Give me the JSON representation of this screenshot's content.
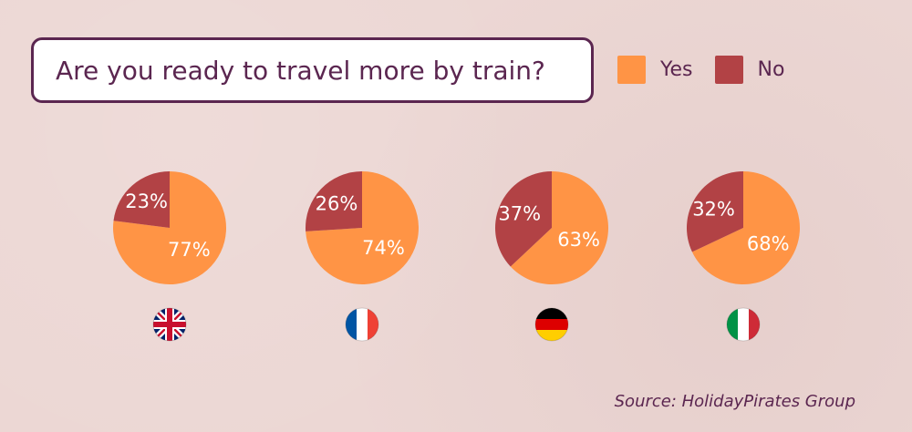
{
  "title": "Are you ready to travel more by train?",
  "legend": {
    "yes_label": "Yes",
    "no_label": "No"
  },
  "colors": {
    "yes": "#ff9445",
    "no": "#b24245",
    "title_text": "#5b2650"
  },
  "source": "Source: HolidayPirates Group",
  "chart_data": {
    "type": "pie",
    "title": "Are you ready to travel more by train?",
    "series_names": [
      "Yes",
      "No"
    ],
    "legend_position": "top-right",
    "pies": [
      {
        "flag": "uk-flag-icon",
        "values": [
          77,
          23
        ],
        "labels": [
          "77%",
          "23%"
        ]
      },
      {
        "flag": "france-flag-icon",
        "values": [
          74,
          26
        ],
        "labels": [
          "74%",
          "26%"
        ]
      },
      {
        "flag": "germany-flag-icon",
        "values": [
          63,
          37
        ],
        "labels": [
          "63%",
          "37%"
        ]
      },
      {
        "flag": "italy-flag-icon",
        "values": [
          68,
          32
        ],
        "labels": [
          "68%",
          "32%"
        ]
      }
    ]
  }
}
